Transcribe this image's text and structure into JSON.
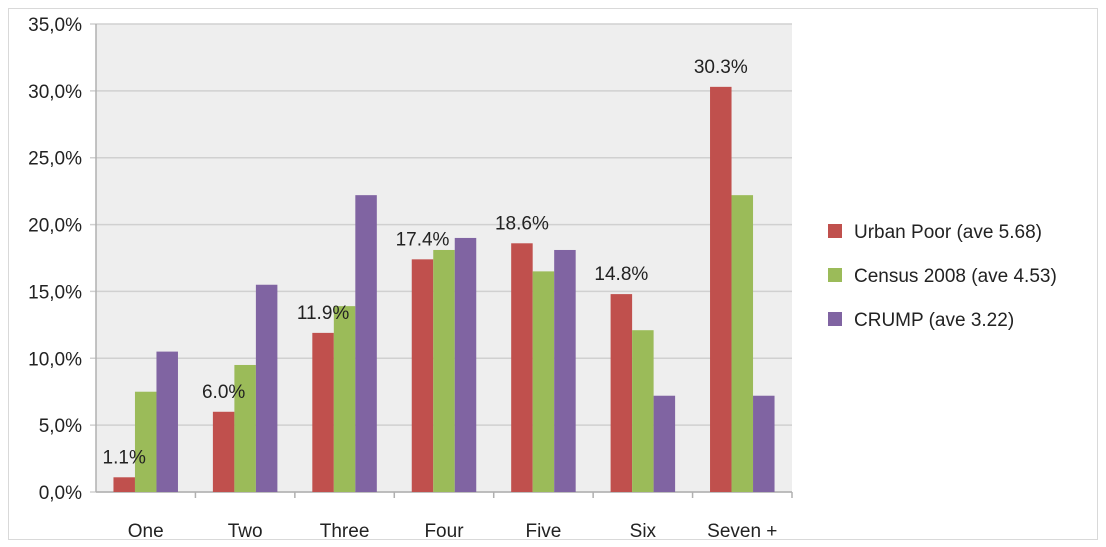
{
  "chart_data": {
    "type": "bar",
    "categories": [
      "One",
      "Two",
      "Three",
      "Four",
      "Five",
      "Six",
      "Seven +"
    ],
    "series": [
      {
        "name": "Urban Poor (ave 5.68)",
        "color": "#c0504d",
        "values": [
          1.1,
          6.0,
          11.9,
          17.4,
          18.6,
          14.8,
          30.3
        ]
      },
      {
        "name": "Census 2008 (ave 4.53)",
        "color": "#9bbb59",
        "values": [
          7.5,
          9.5,
          13.9,
          18.1,
          16.5,
          12.1,
          22.2
        ]
      },
      {
        "name": "CRUMP (ave 3.22)",
        "color": "#8064a2",
        "values": [
          10.5,
          15.5,
          22.2,
          19.0,
          18.1,
          7.2,
          7.2
        ]
      }
    ],
    "data_labels": [
      "1.1%",
      "6.0%",
      "11.9%",
      "17.4%",
      "18.6%",
      "14.8%",
      "30.3%"
    ],
    "y_ticks": [
      "0,0%",
      "5,0%",
      "10,0%",
      "15,0%",
      "20,0%",
      "25,0%",
      "30,0%",
      "35,0%"
    ],
    "ylim": [
      0,
      35
    ],
    "grid": true,
    "plot_background": "#eeeeee",
    "grid_color": "#d0d0d0",
    "legend_position": "right"
  }
}
